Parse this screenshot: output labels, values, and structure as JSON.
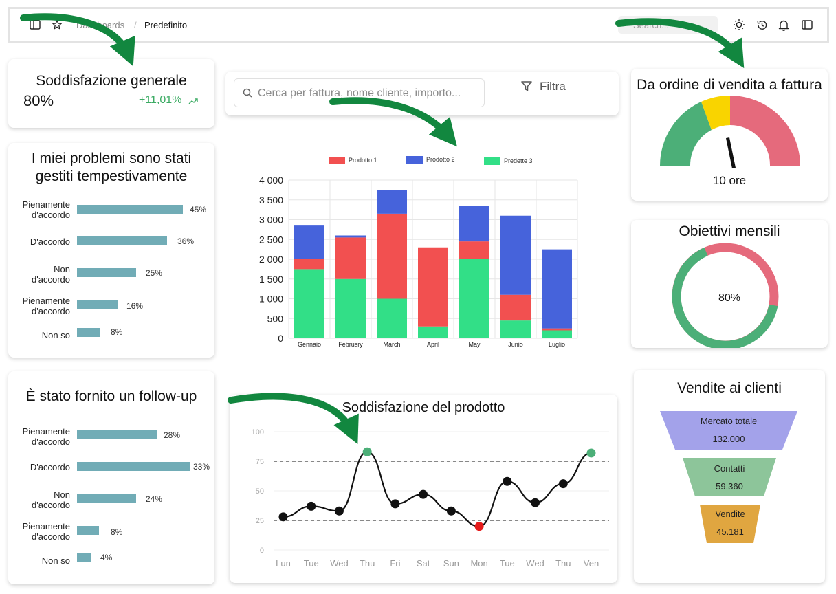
{
  "topbar": {
    "breadcrumb_parent": "Dashboards",
    "breadcrumb_separator": "/",
    "breadcrumb_current": "Predefinito",
    "search_placeholder": "Search..."
  },
  "kpi": {
    "title": "Soddisfazione generale",
    "value": "80%",
    "delta": "+11,01%"
  },
  "problems_card": {
    "title_line1": "I miei problemi sono stati",
    "title_line2": "gestiti tempestivamente",
    "rows": [
      {
        "label_1": "Pienamente",
        "label_2": "d'accordo",
        "pct": "45%",
        "value": 45
      },
      {
        "label_1": "D'accordo",
        "label_2": "",
        "pct": "36%",
        "value": 36
      },
      {
        "label_1": "Non",
        "label_2": "d'accordo",
        "pct": "25%",
        "value": 25
      },
      {
        "label_1": "Pienamente",
        "label_2": "d'accordo",
        "pct": "16%",
        "value": 16
      },
      {
        "label_1": "Non so",
        "label_2": "",
        "pct": "8%",
        "value": 8
      }
    ]
  },
  "followup_card": {
    "title": "È stato fornito un follow-up",
    "rows": [
      {
        "label_1": "Pienamente",
        "label_2": "d'accordo",
        "pct": "28%",
        "value": 28
      },
      {
        "label_1": "D'accordo",
        "label_2": "",
        "pct": "33%",
        "value": 33
      },
      {
        "label_1": "Non",
        "label_2": "d'accordo",
        "pct": "24%",
        "value": 24
      },
      {
        "label_1": "Pienamente",
        "label_2": "d'accordo",
        "pct": "8%",
        "value": 8
      },
      {
        "label_1": "Non so",
        "label_2": "",
        "pct": "4%",
        "value": 4
      }
    ]
  },
  "search": {
    "placeholder": "Cerca per fattura, nome cliente, importo...",
    "filter_label": "Filtra"
  },
  "colors": {
    "accent_green": "#3bab63",
    "bar_teal": "#71acb6",
    "prod1": "#f25050",
    "prod2": "#4663db",
    "prod3": "#32df87",
    "gauge_green": "#4caf78",
    "gauge_yellow": "#f9d400",
    "gauge_red": "#e56a7c",
    "funnel_purple": "#a3a2ea",
    "funnel_green": "#8dc59a",
    "funnel_orange": "#e0a640",
    "arrow_green": "#12873f"
  },
  "chart_data": [
    {
      "type": "bar",
      "stacked": true,
      "categories": [
        "Gennaio",
        "Februsry",
        "March",
        "April",
        "May",
        "Junio",
        "Luglio"
      ],
      "series": [
        {
          "name": "Prodotto 1",
          "color": "#f25050",
          "values": [
            250,
            1050,
            2150,
            2000,
            450,
            650,
            50
          ]
        },
        {
          "name": "Prodotto 2",
          "color": "#4663db",
          "values": [
            850,
            50,
            600,
            0,
            900,
            2000,
            2000
          ]
        },
        {
          "name": "Predette 3",
          "color": "#32df87",
          "values": [
            1750,
            1500,
            1000,
            300,
            2000,
            450,
            200
          ]
        }
      ],
      "ylim": [
        0,
        4000
      ],
      "yticks": [
        "0",
        "500",
        "1 000",
        "1 500",
        "2 000",
        "2 500",
        "3 000",
        "3 500",
        "4 000"
      ],
      "grid": true,
      "legend": "top"
    },
    {
      "type": "line",
      "title": "Soddisfazione del prodotto",
      "x": [
        "Lun",
        "Tue",
        "Wed",
        "Thu",
        "Fri",
        "Sat",
        "Sun",
        "Mon",
        "Tue",
        "Wed",
        "Thu",
        "Ven"
      ],
      "y": [
        28,
        37,
        33,
        83,
        39,
        47,
        33,
        20,
        58,
        40,
        56,
        82
      ],
      "points": [
        28,
        37,
        33,
        83,
        39,
        47,
        33,
        20,
        58,
        40,
        56,
        82
      ],
      "highlight_high": [
        3,
        11
      ],
      "highlight_low": [
        7
      ],
      "reference_lines": [
        75,
        25
      ],
      "ylim": [
        0,
        100
      ],
      "yticks": [
        "0",
        "25",
        "50",
        "75",
        "100"
      ]
    },
    {
      "type": "gauge",
      "title": "Da ordine di vendita a fattura",
      "value_label": "10 ore",
      "segments": [
        "green",
        "yellow",
        "red"
      ]
    },
    {
      "type": "donut",
      "title": "Obiettivi mensili",
      "value": 80,
      "label": "80%"
    },
    {
      "type": "funnel",
      "title": "Vendite ai clienti",
      "stages": [
        {
          "name": "Mercato totale",
          "value": "132.000"
        },
        {
          "name": "Contatti",
          "value": "59.360"
        },
        {
          "name": "Vendite",
          "value": "45.181"
        }
      ]
    }
  ]
}
